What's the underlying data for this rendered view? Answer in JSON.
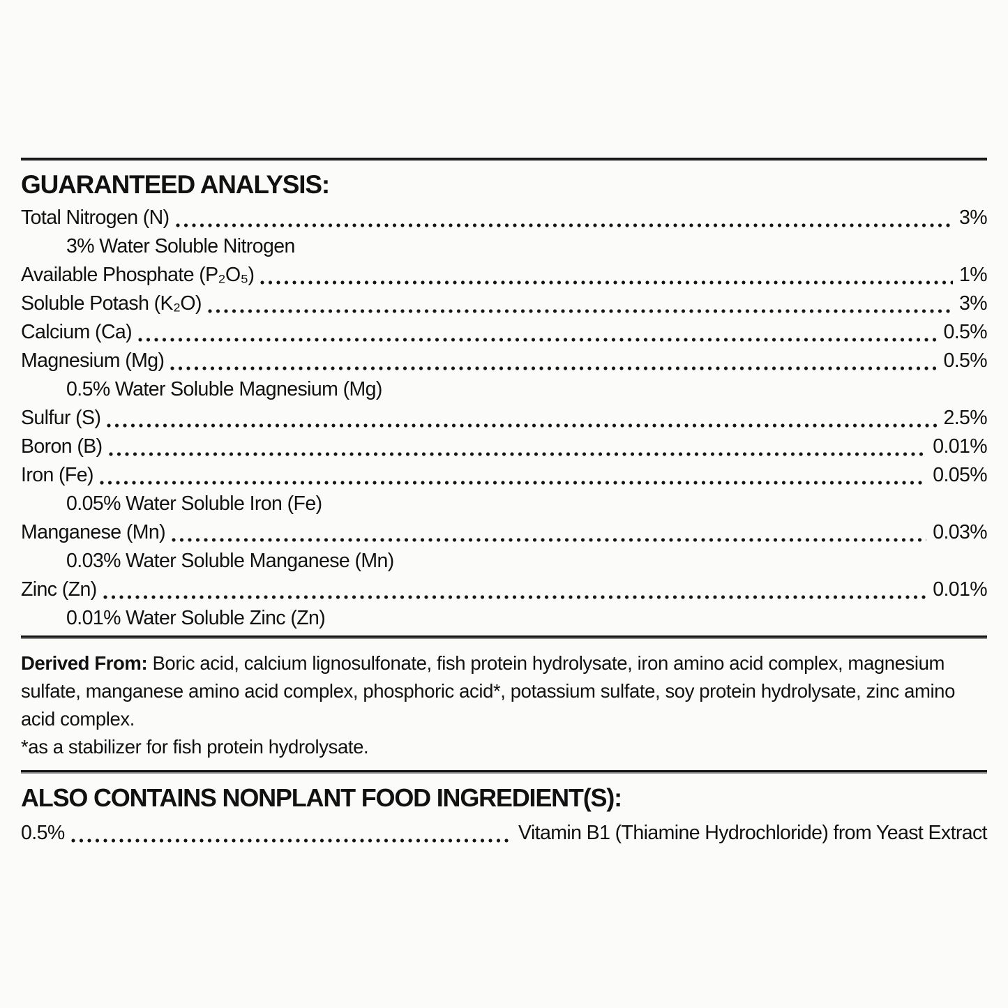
{
  "page": {
    "background": "#fbfbfa",
    "text_color": "#111111",
    "rule_color": "#141414"
  },
  "guaranteed_analysis": {
    "heading": "GUARANTEED ANALYSIS:",
    "rows": [
      {
        "type": "entry",
        "label": "Total Nitrogen (N)",
        "value": "3%"
      },
      {
        "type": "note",
        "text": "3% Water Soluble Nitrogen"
      },
      {
        "type": "entry",
        "label": "Available Phosphate (P₂O₅)",
        "value": "1%"
      },
      {
        "type": "entry",
        "label": "Soluble Potash (K₂O)",
        "value": "3%"
      },
      {
        "type": "entry",
        "label": "Calcium (Ca)",
        "value": "0.5%"
      },
      {
        "type": "entry",
        "label": "Magnesium (Mg)",
        "value": "0.5%"
      },
      {
        "type": "note",
        "text": "0.5% Water Soluble Magnesium (Mg)"
      },
      {
        "type": "entry",
        "label": "Sulfur (S)",
        "value": "2.5%"
      },
      {
        "type": "entry",
        "label": "Boron (B)",
        "value": "0.01%"
      },
      {
        "type": "entry",
        "label": "Iron (Fe)",
        "value": "0.05%"
      },
      {
        "type": "note",
        "text": "0.05% Water Soluble Iron (Fe)"
      },
      {
        "type": "entry",
        "label": "Manganese (Mn)",
        "value": "0.03%"
      },
      {
        "type": "note",
        "text": "0.03% Water Soluble Manganese (Mn)"
      },
      {
        "type": "entry",
        "label": "Zinc (Zn)",
        "value": "0.01%"
      },
      {
        "type": "note",
        "text": "0.01% Water Soluble Zinc (Zn)"
      }
    ]
  },
  "derived_from": {
    "lead": "Derived From:",
    "text": "Boric acid, calcium lignosulfonate, fish protein hydrolysate, iron amino acid complex, magnesium sulfate, manganese amino acid complex, phosphoric acid*, potassium sulfate, soy protein hydrolysate, zinc amino acid complex.",
    "footnote": "*as a stabilizer for fish protein hydrolysate."
  },
  "also_contains": {
    "heading": "ALSO CONTAINS NONPLANT FOOD INGREDIENT(S):",
    "rows": [
      {
        "left": "0.5%",
        "right": "Vitamin B1 (Thiamine Hydrochloride) from Yeast Extract"
      }
    ]
  }
}
